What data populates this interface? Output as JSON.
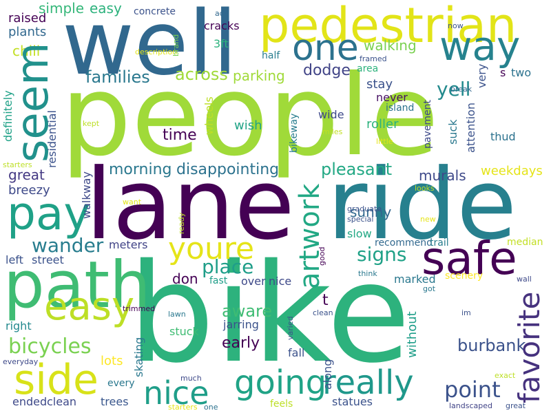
{
  "word_cloud": {
    "words": [
      {
        "text": "people",
        "color": "#a0da39"
      },
      {
        "text": "bike",
        "color": "#2db27d"
      },
      {
        "text": "lane",
        "color": "#440154"
      },
      {
        "text": "ride",
        "color": "#27808e"
      },
      {
        "text": "well",
        "color": "#31688e"
      },
      {
        "text": "pedestrian",
        "color": "#e2e418"
      },
      {
        "text": "path",
        "color": "#3fbc73"
      },
      {
        "text": "one",
        "color": "#2c728e"
      },
      {
        "text": "way",
        "color": "#26828e"
      },
      {
        "text": "seem",
        "color": "#21918c"
      },
      {
        "text": "pay",
        "color": "#1fa187"
      },
      {
        "text": "safe",
        "color": "#440154"
      },
      {
        "text": "easy",
        "color": "#bddf26"
      },
      {
        "text": "side",
        "color": "#d8e219"
      },
      {
        "text": "nice",
        "color": "#1f9e89"
      },
      {
        "text": "going",
        "color": "#20a386"
      },
      {
        "text": "really",
        "color": "#1f988b"
      },
      {
        "text": "youre",
        "color": "#e5e419"
      },
      {
        "text": "artwork",
        "color": "#22a884"
      },
      {
        "text": "favorite",
        "color": "#46327e"
      },
      {
        "text": "point",
        "color": "#3b528b"
      },
      {
        "text": "bicycles",
        "color": "#7ad151"
      },
      {
        "text": "place",
        "color": "#1f9e89"
      },
      {
        "text": "signs",
        "color": "#1fa187"
      },
      {
        "text": "wander",
        "color": "#287d8e"
      },
      {
        "text": "aware",
        "color": "#3fbc73"
      },
      {
        "text": "early",
        "color": "#440154"
      },
      {
        "text": "yell",
        "color": "#238a8d"
      },
      {
        "text": "families",
        "color": "#2a788e"
      },
      {
        "text": "across",
        "color": "#a0da39"
      },
      {
        "text": "morning",
        "color": "#2a788e"
      },
      {
        "text": "disappointing",
        "color": "#2c728e"
      },
      {
        "text": "pleasant",
        "color": "#22a884"
      },
      {
        "text": "burbank",
        "color": "#3b528b"
      },
      {
        "text": "walking",
        "color": "#7ad151"
      },
      {
        "text": "dodge",
        "color": "#414487"
      },
      {
        "text": "parking",
        "color": "#a0da39"
      },
      {
        "text": "time",
        "color": "#440154"
      },
      {
        "text": "murals",
        "color": "#3e4989"
      },
      {
        "text": "sunny",
        "color": "#31688e"
      },
      {
        "text": "great",
        "color": "#443983"
      },
      {
        "text": "breezy",
        "color": "#3e4989"
      },
      {
        "text": "simple",
        "color": "#35b779"
      },
      {
        "text": "easy",
        "color": "#2db27d"
      },
      {
        "text": "concrete",
        "color": "#3b528b"
      },
      {
        "text": "raised",
        "color": "#440154"
      },
      {
        "text": "plants",
        "color": "#31688e"
      },
      {
        "text": "chill",
        "color": "#c2df23"
      },
      {
        "text": "cracks",
        "color": "#440154"
      },
      {
        "text": "3ft",
        "color": "#2db27d"
      },
      {
        "text": "half",
        "color": "#287d8e"
      },
      {
        "text": "stay",
        "color": "#3b528b"
      },
      {
        "text": "never",
        "color": "#471063"
      },
      {
        "text": "wish",
        "color": "#20a386"
      },
      {
        "text": "wide",
        "color": "#3e4989"
      },
      {
        "text": "roller",
        "color": "#2db27d"
      },
      {
        "text": "thud",
        "color": "#2c728e"
      },
      {
        "text": "weekdays",
        "color": "#e5e419"
      },
      {
        "text": "meters",
        "color": "#414487"
      },
      {
        "text": "street",
        "color": "#3b528b"
      },
      {
        "text": "left",
        "color": "#3b528b"
      },
      {
        "text": "don",
        "color": "#440154"
      },
      {
        "text": "fast",
        "color": "#1f9e89"
      },
      {
        "text": "over",
        "color": "#3e4989"
      },
      {
        "text": "nice",
        "color": "#3e4989"
      },
      {
        "text": "right",
        "color": "#23898e"
      },
      {
        "text": "lots",
        "color": "#fde725"
      },
      {
        "text": "every",
        "color": "#2a788e"
      },
      {
        "text": "ended",
        "color": "#3e4989"
      },
      {
        "text": "clean",
        "color": "#3e4989"
      },
      {
        "text": "trees",
        "color": "#39568c"
      },
      {
        "text": "statues",
        "color": "#3b528b"
      },
      {
        "text": "feels",
        "color": "#bddf26"
      },
      {
        "text": "fall",
        "color": "#3b528b"
      },
      {
        "text": "stuck",
        "color": "#3fbc73"
      },
      {
        "text": "jarring",
        "color": "#3b528b"
      },
      {
        "text": "marked",
        "color": "#2a788e"
      },
      {
        "text": "scenery",
        "color": "#fde725"
      },
      {
        "text": "t",
        "color": "#440154"
      },
      {
        "text": "slow",
        "color": "#22a884"
      },
      {
        "text": "recommend",
        "color": "#31688e"
      },
      {
        "text": "trail",
        "color": "#287d8e"
      },
      {
        "text": "median",
        "color": "#c2df23"
      },
      {
        "text": "island",
        "color": "#2c728e"
      },
      {
        "text": "area",
        "color": "#2db27d"
      },
      {
        "text": "two",
        "color": "#2c728e"
      },
      {
        "text": "s",
        "color": "#440154"
      },
      {
        "text": "framed",
        "color": "#3b528b"
      },
      {
        "text": "add",
        "color": "#31688e"
      },
      {
        "text": "brand",
        "color": "#7ad151"
      },
      {
        "text": "now",
        "color": "#3b528b"
      },
      {
        "text": "description",
        "color": "#e2e418"
      },
      {
        "text": "break",
        "color": "#31688e"
      },
      {
        "text": "kept",
        "color": "#bddf26"
      },
      {
        "text": "miles",
        "color": "#c2df23"
      },
      {
        "text": "little",
        "color": "#e5e419"
      },
      {
        "text": "starters",
        "color": "#bddf26"
      },
      {
        "text": "want",
        "color": "#e2e418"
      },
      {
        "text": "looks",
        "color": "#bddf26"
      },
      {
        "text": "graduate",
        "color": "#3b528b"
      },
      {
        "text": "special",
        "color": "#3b528b"
      },
      {
        "text": "new",
        "color": "#e5e419"
      },
      {
        "text": "think",
        "color": "#2a788e"
      },
      {
        "text": "got",
        "color": "#2a788e"
      },
      {
        "text": "wall",
        "color": "#3e4989"
      },
      {
        "text": "trimmed",
        "color": "#440154"
      },
      {
        "text": "lawn",
        "color": "#2a788e"
      },
      {
        "text": "clean",
        "color": "#3b528b"
      },
      {
        "text": "im",
        "color": "#3b528b"
      },
      {
        "text": "everyday",
        "color": "#3e4989"
      },
      {
        "text": "much",
        "color": "#3e4989"
      },
      {
        "text": "exact",
        "color": "#bddf26"
      },
      {
        "text": "starters",
        "color": "#e5e419"
      },
      {
        "text": "one",
        "color": "#2c728e"
      },
      {
        "text": "landscaped",
        "color": "#414487"
      },
      {
        "text": "great",
        "color": "#3b528b"
      },
      {
        "text": "definitely",
        "color": "#1fa187"
      },
      {
        "text": "residential",
        "color": "#3b528b"
      },
      {
        "text": "walkway",
        "color": "#3e4989"
      },
      {
        "text": "wheels",
        "color": "#bddf26"
      },
      {
        "text": "bikeway",
        "color": "#287d8e"
      },
      {
        "text": "ready",
        "color": "#bddf26"
      },
      {
        "text": "attention",
        "color": "#3b528b"
      },
      {
        "text": "very",
        "color": "#3b528b"
      },
      {
        "text": "pavement",
        "color": "#3e4989"
      },
      {
        "text": "suck",
        "color": "#2a788e"
      },
      {
        "text": "skating",
        "color": "#2a788e"
      },
      {
        "text": "along",
        "color": "#3b528b"
      },
      {
        "text": "without",
        "color": "#1f9e89"
      },
      {
        "text": "good",
        "color": "#440154"
      },
      {
        "text": "varied",
        "color": "#3b528b"
      }
    ]
  }
}
